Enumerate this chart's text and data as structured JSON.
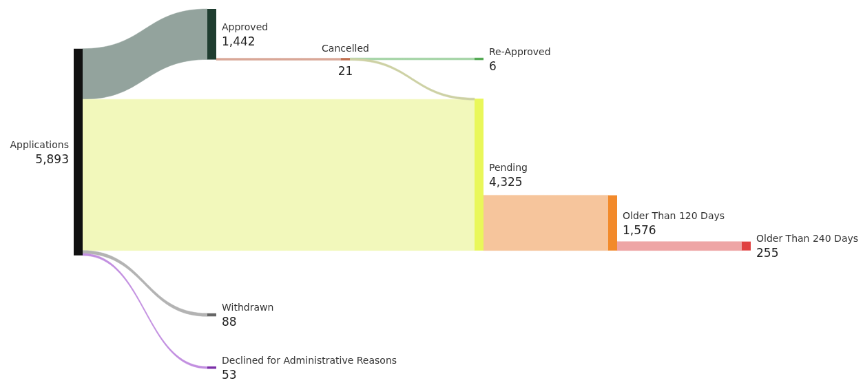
{
  "chart_data": {
    "type": "other",
    "categories": [
      "Applications",
      "Approved",
      "Cancelled",
      "Re-Approved",
      "Pending",
      "Older Than 120 Days",
      "Older Than 240 Days",
      "Withdrawn",
      "Declined for Administrative Reasons"
    ],
    "values": [
      5893,
      1442,
      21,
      6,
      4325,
      1576,
      255,
      88,
      53
    ],
    "value_labels": [
      "5,893",
      "1,442",
      "21",
      "6",
      "4,325",
      "1,576",
      "255",
      "88",
      "53"
    ],
    "colors": [
      "#111111",
      "#1f3d30",
      "#c0704f",
      "#55aa55",
      "#e9f75a",
      "#f28a2b",
      "#e04040",
      "#666666",
      "#7b2fa8"
    ],
    "series": [
      {
        "values": [
          null,
          null,
          null,
          null,
          null,
          null,
          null,
          null,
          null
        ],
        "colors": [
          null,
          "#93a39d",
          null,
          null,
          "#f2f8bb",
          null,
          null,
          "#b3b3b3",
          "#c28fe0"
        ]
      },
      {
        "values": [
          null,
          null,
          null,
          null,
          null,
          null,
          null,
          null,
          null
        ],
        "colors": [
          null,
          null,
          "#d9a898",
          null,
          null,
          null,
          null,
          null,
          null
        ]
      },
      {
        "values": [
          null,
          null,
          null,
          null,
          null,
          null,
          null,
          null,
          null
        ],
        "colors": [
          null,
          null,
          null,
          "#a9d6aa",
          "#cdd1a4",
          null,
          null,
          null,
          null
        ]
      },
      {
        "values": [
          null,
          null,
          null,
          null,
          null,
          null,
          null,
          null,
          null
        ],
        "colors": [
          null,
          null,
          null,
          null,
          null,
          null,
          null,
          null,
          null
        ]
      },
      {
        "values": [
          null,
          null,
          null,
          null,
          null,
          null,
          null,
          null,
          null
        ],
        "colors": [
          null,
          null,
          null,
          null,
          null,
          "#f6c59c",
          null,
          null,
          null
        ]
      },
      {
        "values": [
          null,
          null,
          null,
          null,
          null,
          null,
          null,
          null,
          null
        ],
        "colors": [
          null,
          null,
          null,
          null,
          null,
          null,
          "#eea5a5",
          null,
          null
        ]
      }
    ]
  }
}
